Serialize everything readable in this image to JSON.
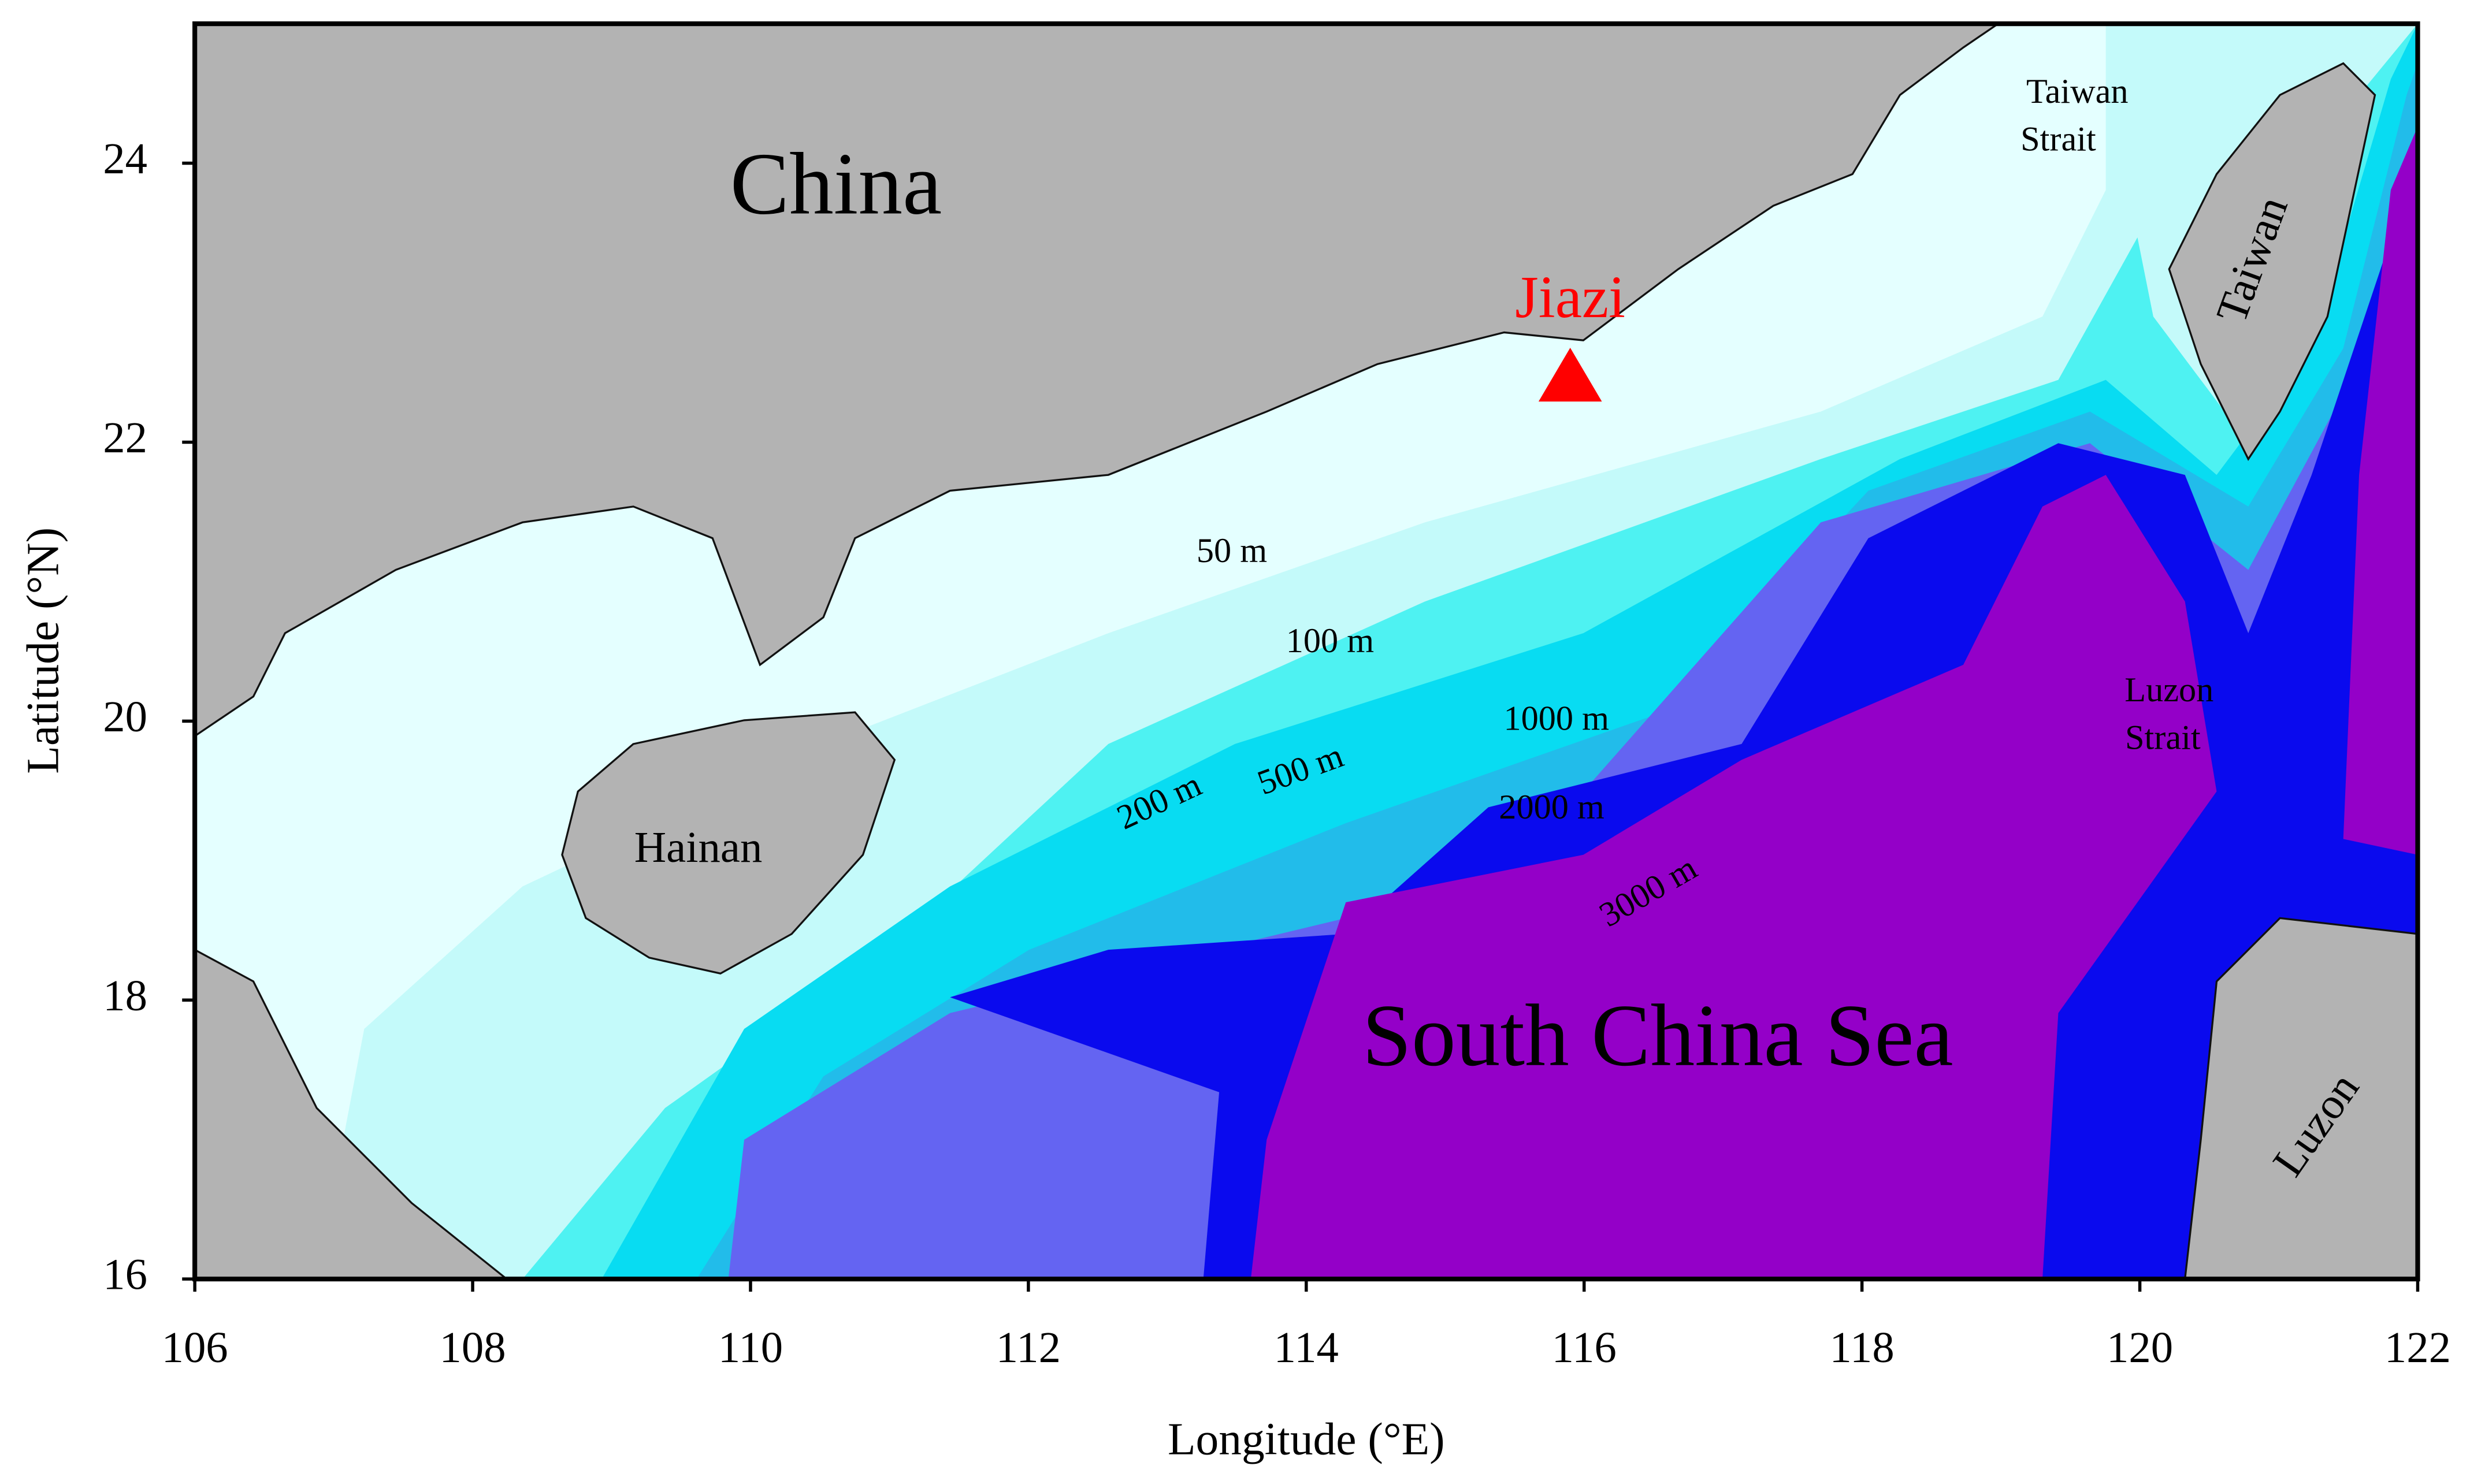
{
  "map": {
    "xlabel": "Longitude (°E)",
    "ylabel": "Latitude (°N)",
    "xlim": [
      106,
      122
    ],
    "ylim": [
      16,
      25
    ],
    "xticks": [
      106,
      108,
      110,
      112,
      114,
      116,
      118,
      120,
      122
    ],
    "yticks": [
      16,
      18,
      20,
      22,
      24
    ],
    "station": {
      "name": "Jiazi",
      "lon": 115.9,
      "lat": 22.45,
      "color": "#ff0000"
    },
    "labels": {
      "china": "China",
      "taiwan_strait": [
        "Taiwan",
        "Strait"
      ],
      "taiwan": "Taiwan",
      "hainan": "Hainan",
      "south_china_sea": "South China Sea",
      "luzon_strait": [
        "Luzon",
        "Strait"
      ],
      "luzon": "Luzon"
    },
    "contour_labels": [
      "50 m",
      "100 m",
      "200 m",
      "500 m",
      "1000 m",
      "2000 m",
      "3000 m"
    ]
  }
}
